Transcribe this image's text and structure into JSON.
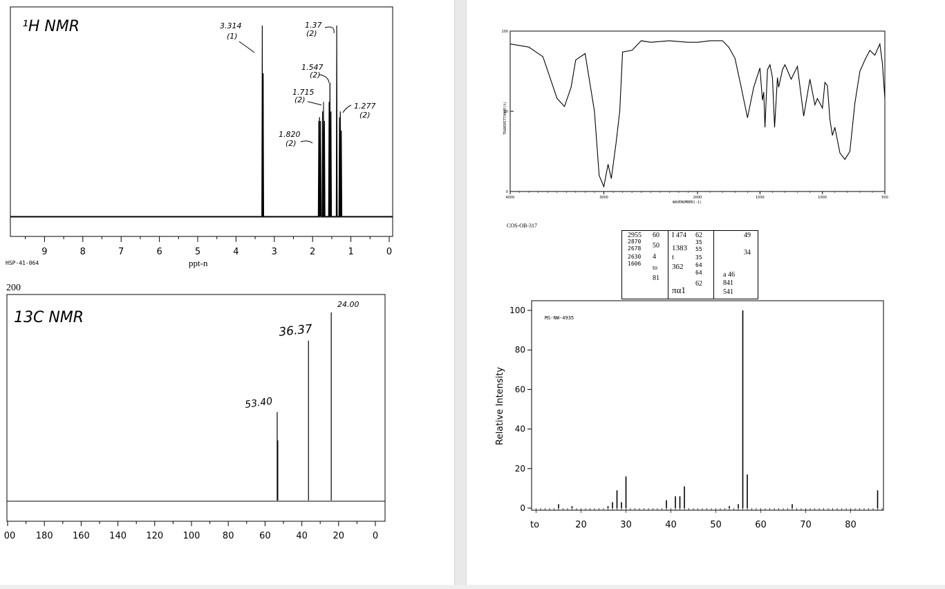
{
  "hnmr": {
    "title": "¹H NMR",
    "xlabel": "ppt-n",
    "sample_code": "HSP-41-064",
    "ticks": [
      "9",
      "8",
      "7",
      "6",
      "5",
      "4",
      "3",
      "2",
      "1",
      "0"
    ],
    "annotations": [
      {
        "shift": "3.314",
        "mult": "(1)"
      },
      {
        "shift": "1.37",
        "mult": "(2)"
      },
      {
        "shift": "1.547",
        "mult": "(2)"
      },
      {
        "shift": "1.715",
        "mult": "(2)"
      },
      {
        "shift": "1.277",
        "mult": "(2)"
      },
      {
        "shift": "1.820",
        "mult": "(2)"
      }
    ]
  },
  "cnmr": {
    "title": "13C NMR",
    "top_label": "200",
    "ticks": [
      "00",
      "180",
      "160",
      "140",
      "120",
      "100",
      "80",
      "60",
      "40",
      "20",
      "0"
    ],
    "peak_labels": [
      "53.40",
      "36.37",
      "24.00"
    ]
  },
  "ir": {
    "xlabel": "WAVENUMBER(-1)",
    "ylabel": "TRANSMITTANCE(%)",
    "y_ticks": [
      "100",
      "50",
      "0"
    ],
    "x_ticks": [
      "4000",
      "3000",
      "2000",
      "1500",
      "1000",
      "500"
    ],
    "caption": "COS-OB-317"
  },
  "ms": {
    "ylabel": "Relative Intensity",
    "code": "MS-NW-4935",
    "y_ticks": [
      "100",
      "80",
      "60",
      "40",
      "20",
      "0"
    ],
    "x_ticks": [
      "to",
      "20",
      "30",
      "40",
      "50",
      "60",
      "70",
      "80"
    ],
    "table": {
      "c1": [
        "2955",
        "2870",
        "2678",
        "2630",
        "1606"
      ],
      "c2": [
        "60",
        "50",
        "4",
        "to",
        "81"
      ],
      "c3": [
        "I 474",
        "1383",
        "t",
        "362"
      ],
      "c3b": [
        "πα1"
      ],
      "c4": [
        "62",
        "35",
        "55",
        "35",
        "64",
        "64",
        "62"
      ],
      "c5": [
        "49",
        "34",
        "a 46",
        "841",
        "541"
      ]
    }
  },
  "chart_data": [
    {
      "type": "line",
      "title": "¹H NMR",
      "xlabel": "ppt-n",
      "xlim": [
        9.5,
        0
      ],
      "peaks": [
        {
          "x": 3.314,
          "height": 1.0
        },
        {
          "x": 3.29,
          "height": 0.75
        },
        {
          "x": 1.84,
          "height": 0.5
        },
        {
          "x": 1.82,
          "height": 0.52
        },
        {
          "x": 1.79,
          "height": 0.5
        },
        {
          "x": 1.74,
          "height": 0.55
        },
        {
          "x": 1.715,
          "height": 0.6
        },
        {
          "x": 1.69,
          "height": 0.5
        },
        {
          "x": 1.57,
          "height": 0.6
        },
        {
          "x": 1.547,
          "height": 0.7
        },
        {
          "x": 1.52,
          "height": 0.55
        },
        {
          "x": 1.37,
          "height": 1.0
        },
        {
          "x": 1.3,
          "height": 0.52
        },
        {
          "x": 1.277,
          "height": 0.55
        },
        {
          "x": 1.25,
          "height": 0.45
        }
      ]
    },
    {
      "type": "line",
      "title": "13C NMR",
      "xlim": [
        200,
        0
      ],
      "peaks": [
        {
          "x": 53.4,
          "height": 0.47
        },
        {
          "x": 36.37,
          "height": 0.85
        },
        {
          "x": 24.0,
          "height": 1.0
        }
      ]
    },
    {
      "type": "line",
      "xlabel": "WAVENUMBER(-1)",
      "ylabel": "TRANSMITTANCE(%)",
      "xlim": [
        4000,
        500
      ],
      "ylim": [
        0,
        100
      ],
      "x": [
        4000,
        3800,
        3650,
        3500,
        3420,
        3350,
        3300,
        3200,
        3100,
        3050,
        3000,
        2955,
        2920,
        2870,
        2830,
        2800,
        2700,
        2600,
        2500,
        2300,
        2100,
        2000,
        1900,
        1800,
        1750,
        1700,
        1650,
        1600,
        1550,
        1500,
        1480,
        1470,
        1460,
        1440,
        1420,
        1400,
        1383,
        1360,
        1350,
        1320,
        1300,
        1250,
        1200,
        1150,
        1100,
        1060,
        1040,
        1000,
        980,
        960,
        940,
        920,
        900,
        860,
        820,
        780,
        740,
        700,
        660,
        620,
        580,
        540,
        520,
        500
      ],
      "y": [
        92,
        90,
        84,
        58,
        53,
        65,
        82,
        86,
        50,
        10,
        3,
        17,
        8,
        30,
        50,
        87,
        88,
        94,
        93,
        94,
        93,
        93,
        94,
        94,
        90,
        83,
        65,
        46,
        65,
        77,
        57,
        62,
        40,
        76,
        79,
        71,
        40,
        71,
        65,
        76,
        79,
        70,
        78,
        47,
        70,
        54,
        58,
        52,
        68,
        66,
        45,
        35,
        40,
        24,
        20,
        25,
        55,
        75,
        82,
        88,
        85,
        92,
        80,
        58
      ]
    },
    {
      "type": "bar",
      "ylabel": "Relative Intensity",
      "ylim": [
        0,
        100
      ],
      "x": [
        15,
        18,
        26,
        27,
        28,
        29,
        30,
        39,
        41,
        42,
        43,
        53,
        55,
        56,
        57,
        67,
        86
      ],
      "values": [
        2,
        1,
        1,
        3,
        9,
        3,
        16,
        4,
        6,
        6,
        11,
        1,
        2,
        100,
        17,
        2,
        9
      ]
    }
  ]
}
